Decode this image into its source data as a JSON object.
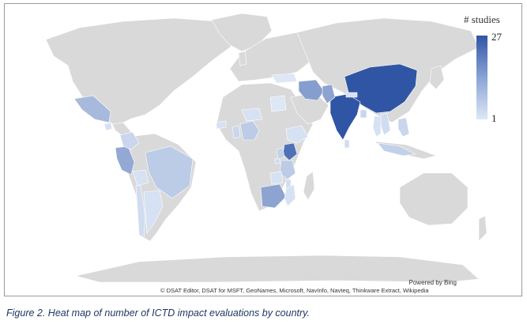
{
  "legend": {
    "title": "# studies",
    "max_label": "27",
    "min_label": "1",
    "min_value": 1,
    "max_value": 27,
    "color_max": "#2f55a4",
    "color_min": "#dde7f6",
    "no_data_color": "#d9d9d9"
  },
  "credits": {
    "powered_by": "Powered by Bing",
    "attribution": "© DSAT Editor, DSAT for MSFT, GeoNames, Microsoft, NavInfo, Navteq, Thinkware Extract, Wikipedia"
  },
  "caption": "Figure 2.  Heat map of number of ICTD impact evaluations by country.",
  "chart_data": {
    "type": "heatmap",
    "countries": [
      {
        "name": "China",
        "value": 27
      },
      {
        "name": "India",
        "value": 27
      },
      {
        "name": "Kenya",
        "value": 22
      },
      {
        "name": "Iran",
        "value": 14
      },
      {
        "name": "Pakistan",
        "value": 13
      },
      {
        "name": "South Africa",
        "value": 13
      },
      {
        "name": "Peru",
        "value": 12
      },
      {
        "name": "Mexico",
        "value": 9
      },
      {
        "name": "Brazil",
        "value": 6
      },
      {
        "name": "Nigeria",
        "value": 6
      },
      {
        "name": "Tanzania",
        "value": 6
      },
      {
        "name": "Indonesia",
        "value": 5
      },
      {
        "name": "Philippines",
        "value": 4
      },
      {
        "name": "Colombia",
        "value": 4
      },
      {
        "name": "Ghana",
        "value": 4
      },
      {
        "name": "Uganda",
        "value": 5
      },
      {
        "name": "Bangladesh",
        "value": 4
      },
      {
        "name": "Vietnam",
        "value": 3
      },
      {
        "name": "Chile",
        "value": 3
      },
      {
        "name": "Argentina",
        "value": 2
      },
      {
        "name": "Malawi",
        "value": 3
      },
      {
        "name": "Ethiopia",
        "value": 2
      },
      {
        "name": "Rwanda",
        "value": 3
      },
      {
        "name": "Mozambique",
        "value": 2
      },
      {
        "name": "Bolivia",
        "value": 2
      },
      {
        "name": "Guatemala",
        "value": 2
      },
      {
        "name": "Niger",
        "value": 2
      },
      {
        "name": "Egypt",
        "value": 1
      },
      {
        "name": "Turkey",
        "value": 1
      },
      {
        "name": "Nepal",
        "value": 2
      },
      {
        "name": "Thailand",
        "value": 2
      },
      {
        "name": "Sri Lanka",
        "value": 3
      },
      {
        "name": "Senegal",
        "value": 2
      },
      {
        "name": "Zambia",
        "value": 2
      }
    ]
  }
}
